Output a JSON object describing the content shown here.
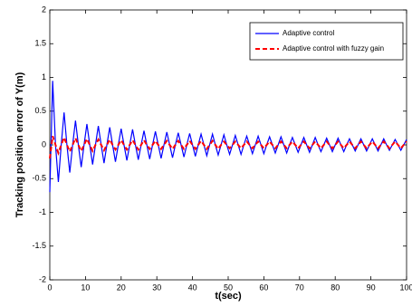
{
  "chart_data": {
    "type": "line",
    "xlabel": "t(sec)",
    "ylabel": "Tracking position error of Y(m)",
    "xlim": [
      0,
      100
    ],
    "xticks": [
      0,
      10,
      20,
      30,
      40,
      50,
      60,
      70,
      80,
      90,
      100
    ],
    "ylim": [
      -2,
      2
    ],
    "yticks": [
      -2,
      -1.5,
      -1,
      -0.5,
      0,
      0.5,
      1,
      1.5,
      2
    ],
    "legend": "upper right",
    "x": [
      0,
      0.8,
      1.6,
      2.4,
      3.2,
      4,
      4.8,
      5.6,
      6.4,
      7.2,
      8,
      8.8,
      9.6,
      10.4,
      11.2,
      12,
      12.8,
      13.6,
      14.4,
      15.2,
      16,
      16.8,
      17.6,
      18.4,
      19.2,
      20,
      20.8,
      21.6,
      22.4,
      23.2,
      24,
      24.8,
      25.6,
      26.4,
      27.2,
      28,
      28.8,
      29.6,
      30.4,
      31.2,
      32,
      32.8,
      33.6,
      34.4,
      35.2,
      36,
      36.8,
      37.6,
      38.4,
      39.2,
      40,
      40.8,
      41.6,
      42.4,
      43.2,
      44,
      44.8,
      45.6,
      46.4,
      47.2,
      48,
      48.8,
      49.6,
      50.4,
      51.2,
      52,
      52.8,
      53.6,
      54.4,
      55.2,
      56,
      56.8,
      57.6,
      58.4,
      59.2,
      60,
      60.8,
      61.6,
      62.4,
      63.2,
      64,
      64.8,
      65.6,
      66.4,
      67.2,
      68,
      68.8,
      69.6,
      70.4,
      71.2,
      72,
      72.8,
      73.6,
      74.4,
      75.2,
      76,
      76.8,
      77.6,
      78.4,
      79.2,
      80,
      80.8,
      81.6,
      82.4,
      83.2,
      84,
      84.8,
      85.6,
      86.4,
      87.2,
      88,
      88.8,
      89.6,
      90.4,
      91.2,
      92,
      92.8,
      93.6,
      94.4,
      95.2,
      96,
      96.8,
      97.6,
      98.4,
      99.2,
      100
    ],
    "series": [
      {
        "name": "Adaptive control",
        "color": "#0000ff",
        "linestyle": "solid",
        "values": [
          -0.7,
          0.95,
          0,
          -0.55,
          0,
          0.48,
          0,
          -0.41,
          0,
          0.36,
          0,
          -0.33,
          0,
          0.31,
          0,
          -0.29,
          0,
          0.28,
          0,
          -0.27,
          0,
          0.26,
          0,
          -0.25,
          0,
          0.24,
          0,
          -0.23,
          0,
          0.23,
          0,
          -0.22,
          0,
          0.21,
          0,
          -0.21,
          0,
          0.2,
          0,
          -0.2,
          0,
          0.19,
          0,
          -0.19,
          0,
          0.18,
          0,
          -0.18,
          0,
          0.17,
          0,
          -0.17,
          0,
          0.16,
          0,
          -0.16,
          0,
          0.16,
          0,
          -0.15,
          0,
          0.15,
          0,
          -0.14,
          0,
          0.14,
          0,
          -0.14,
          0,
          0.13,
          0,
          -0.13,
          0,
          0.13,
          0,
          -0.13,
          0,
          0.12,
          0,
          -0.12,
          0,
          0.12,
          0,
          -0.12,
          0,
          0.11,
          0,
          -0.11,
          0,
          0.11,
          0,
          -0.11,
          0,
          0.11,
          0,
          -0.1,
          0,
          0.1,
          0,
          -0.1,
          0,
          0.1,
          0,
          -0.1,
          0,
          0.09,
          0,
          -0.09,
          0,
          0.09,
          0,
          -0.09,
          0,
          0.09,
          0,
          -0.09,
          0,
          0.09,
          0,
          -0.08,
          0,
          0.08,
          0,
          -0.08,
          0,
          0.08
        ]
      },
      {
        "name": "Adaptive control with fuzzy gain",
        "color": "#ff0000",
        "linestyle": "dashed",
        "values": [
          -0.2,
          0.13,
          0,
          -0.12,
          0,
          0.11,
          0,
          -0.1,
          0,
          0.1,
          0,
          -0.09,
          0,
          0.09,
          0,
          -0.09,
          0,
          0.08,
          0,
          -0.08,
          0,
          0.08,
          0,
          -0.07,
          0,
          0.07,
          0,
          -0.07,
          0,
          0.07,
          0,
          -0.07,
          0,
          0.07,
          0,
          -0.06,
          0,
          0.06,
          0,
          -0.06,
          0,
          0.06,
          0,
          -0.06,
          0,
          0.06,
          0,
          -0.06,
          0,
          0.06,
          0,
          -0.06,
          0,
          0.06,
          0,
          -0.06,
          0,
          0.06,
          0,
          -0.06,
          0,
          0.05,
          0,
          -0.05,
          0,
          0.05,
          0,
          -0.05,
          0,
          0.05,
          0,
          -0.05,
          0,
          0.05,
          0,
          -0.05,
          0,
          0.05,
          0,
          -0.05,
          0,
          0.05,
          0,
          -0.05,
          0,
          0.05,
          0,
          -0.05,
          0,
          0.05,
          0,
          -0.05,
          0,
          0.05,
          0,
          -0.05,
          0,
          0.05,
          0,
          -0.05,
          0,
          0.05,
          0,
          -0.05,
          0,
          0.05,
          0,
          -0.05,
          0,
          0.05,
          0,
          -0.05,
          0,
          0.05,
          0,
          -0.05,
          0,
          0.05,
          0,
          -0.05,
          0,
          0.05,
          0,
          -0.05,
          0,
          0.05
        ]
      }
    ]
  }
}
